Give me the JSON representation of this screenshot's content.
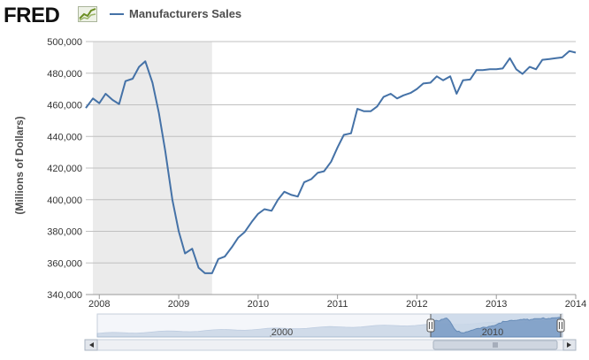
{
  "header": {
    "logo_text": "FRED",
    "logo_icon": "fred-chart-icon",
    "legend_label": "Manufacturers Sales"
  },
  "colors": {
    "series": "#4572a7",
    "recession": "#ebebeb",
    "grid": "#c0c0c0",
    "navigator_fill": "#a6bcd6",
    "navigator_mask": "#c9d7e8"
  },
  "chart_data": {
    "type": "line",
    "title": "",
    "xlabel": "",
    "ylabel": "(Millions of Dollars)",
    "ylim": [
      340000,
      500000
    ],
    "yticks": [
      340000,
      360000,
      380000,
      400000,
      420000,
      440000,
      460000,
      480000,
      500000
    ],
    "ytick_labels": [
      "340,000",
      "360,000",
      "380,000",
      "400,000",
      "420,000",
      "440,000",
      "460,000",
      "480,000",
      "500,000"
    ],
    "xlim": [
      2007.83,
      2014.0
    ],
    "xticks": [
      2008,
      2009,
      2010,
      2011,
      2012,
      2013,
      2014
    ],
    "xtick_labels": [
      "2008",
      "2009",
      "2010",
      "2011",
      "2012",
      "2013",
      "2014"
    ],
    "grid": true,
    "legend": "top-left",
    "recession": [
      2007.92,
      2009.42
    ],
    "series": [
      {
        "name": "Manufacturers Sales",
        "x": [
          2007.83,
          2007.92,
          2008.0,
          2008.08,
          2008.17,
          2008.25,
          2008.33,
          2008.42,
          2008.5,
          2008.58,
          2008.67,
          2008.75,
          2008.83,
          2008.92,
          2009.0,
          2009.08,
          2009.17,
          2009.25,
          2009.33,
          2009.42,
          2009.5,
          2009.58,
          2009.67,
          2009.75,
          2009.83,
          2009.92,
          2010.0,
          2010.08,
          2010.17,
          2010.25,
          2010.33,
          2010.42,
          2010.5,
          2010.58,
          2010.67,
          2010.75,
          2010.83,
          2010.92,
          2011.0,
          2011.08,
          2011.17,
          2011.25,
          2011.33,
          2011.42,
          2011.5,
          2011.58,
          2011.67,
          2011.75,
          2011.83,
          2011.92,
          2012.0,
          2012.08,
          2012.17,
          2012.25,
          2012.33,
          2012.42,
          2012.5,
          2012.58,
          2012.67,
          2012.75,
          2012.83,
          2012.92,
          2013.0,
          2013.08,
          2013.17,
          2013.25,
          2013.33,
          2013.42,
          2013.5,
          2013.58,
          2013.67,
          2013.75,
          2013.83,
          2013.92,
          2014.0
        ],
        "values": [
          458000,
          464000,
          461000,
          467000,
          463000,
          460500,
          475000,
          476500,
          484000,
          487500,
          474000,
          455000,
          431000,
          400000,
          380000,
          366000,
          369000,
          357000,
          353500,
          353500,
          362500,
          364000,
          370000,
          376000,
          379500,
          386000,
          391000,
          394000,
          393000,
          400000,
          405000,
          403000,
          402000,
          411000,
          413000,
          417000,
          418000,
          424000,
          433000,
          441000,
          442000,
          457500,
          456000,
          456000,
          459000,
          465000,
          467000,
          464000,
          466000,
          467500,
          470000,
          473500,
          474000,
          478000,
          475500,
          478000,
          467000,
          475500,
          476000,
          482000,
          482000,
          482500,
          482500,
          483000,
          489500,
          482500,
          479500,
          484000,
          482500,
          488500,
          489000,
          489500,
          490000,
          494000,
          493000
        ]
      }
    ]
  },
  "navigator": {
    "label_left": "2000",
    "label_right": "2010",
    "scroll_left_icon": "arrow-left-icon",
    "scroll_right_icon": "arrow-right-icon",
    "handle_left_icon": "grip-handle-icon",
    "handle_right_icon": "grip-handle-icon"
  }
}
